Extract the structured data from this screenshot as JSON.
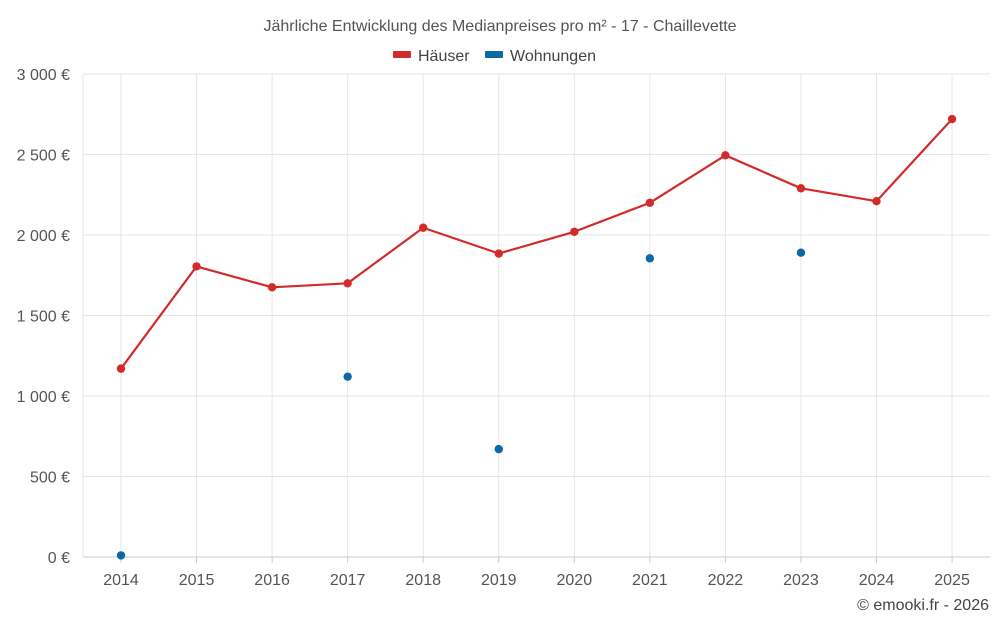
{
  "chart_data": {
    "type": "line",
    "title": "Jährliche Entwicklung des Medianpreises pro m² - 17 - Chaillevette",
    "categories": [
      "2014",
      "2015",
      "2016",
      "2017",
      "2018",
      "2019",
      "2020",
      "2021",
      "2022",
      "2023",
      "2024",
      "2025"
    ],
    "series": [
      {
        "name": "Häuser",
        "color": "#d32a2a",
        "style": "line-markers",
        "values": [
          1170,
          1805,
          1675,
          1700,
          2045,
          1885,
          2020,
          2200,
          2495,
          2290,
          2210,
          2720
        ]
      },
      {
        "name": "Wohnungen",
        "color": "#0b6aa6",
        "style": "markers",
        "values": [
          10,
          null,
          null,
          1120,
          null,
          670,
          null,
          1855,
          null,
          1890,
          null,
          null
        ]
      }
    ],
    "ylim": [
      0,
      3000
    ],
    "yticks": [
      0,
      500,
      1000,
      1500,
      2000,
      2500,
      3000
    ],
    "ytick_labels": [
      "0 €",
      "500 €",
      "1 000 €",
      "1 500 €",
      "2 000 €",
      "2 500 €",
      "3 000 €"
    ],
    "grid": true,
    "legend_position": "top-center",
    "xlabel": "",
    "ylabel": ""
  },
  "footer": {
    "copyright": "© emooki.fr - 2026"
  }
}
